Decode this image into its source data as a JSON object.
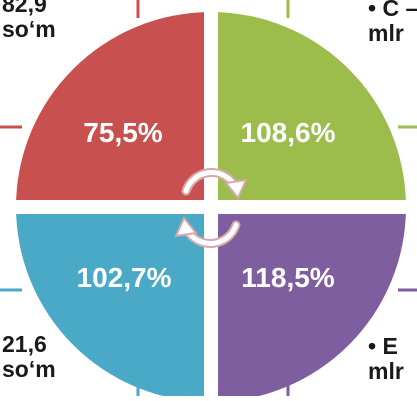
{
  "quadrants": [
    {
      "id": "top-left",
      "value": "75,5%",
      "color": "#c8504e"
    },
    {
      "id": "top-right",
      "value": "108,6%",
      "color": "#9cbd4c"
    },
    {
      "id": "bottom-left",
      "value": "102,7%",
      "color": "#4aa9c6"
    },
    {
      "id": "bottom-right",
      "value": "118,5%",
      "color": "#7f5e9f"
    }
  ],
  "corner_labels": {
    "top_left": {
      "line1": "82,9",
      "line2": "so‘m"
    },
    "top_right": {
      "line1": "• C –",
      "line2": "mlr"
    },
    "bottom_left": {
      "line1": "21,6",
      "line2": "so‘m"
    },
    "bottom_right": {
      "line1": "• E",
      "line2": "mlr"
    }
  },
  "cycle_arrows_icon": "circular-arrows-icon",
  "colors": {
    "divider": "#ffffff",
    "arrow_fill": "#ffffff",
    "arrow_stroke": "#d7a9ab"
  }
}
